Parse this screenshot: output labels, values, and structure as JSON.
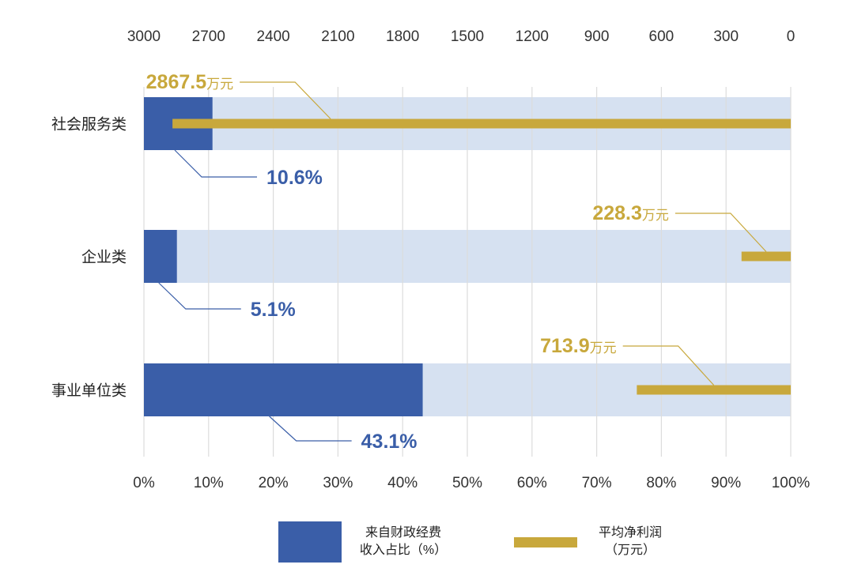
{
  "chart_data": {
    "type": "bar",
    "categories": [
      "社会服务类",
      "企业类",
      "事业单位类"
    ],
    "series": [
      {
        "name": "来自财政经费收入占比（%）",
        "legend_lines": [
          "来自财政经费",
          "收入占比（%）"
        ],
        "axis": "bottom",
        "values": [
          10.6,
          5.1,
          43.1
        ],
        "labels": [
          "10.6%",
          "5.1%",
          "43.1%"
        ],
        "color": "#3a5ea8"
      },
      {
        "name": "平均净利润（万元）",
        "legend_lines": [
          "平均净利润",
          "（万元）"
        ],
        "axis": "top",
        "values": [
          2867.5,
          228.3,
          713.9
        ],
        "labels": [
          "2867.5",
          "228.3",
          "713.9"
        ],
        "unit": "万元",
        "color": "#c8a83c"
      }
    ],
    "bottom_axis": {
      "range": [
        0,
        100
      ],
      "ticks": [
        0,
        10,
        20,
        30,
        40,
        50,
        60,
        70,
        80,
        90,
        100
      ],
      "tick_labels": [
        "0%",
        "10%",
        "20%",
        "30%",
        "40%",
        "50%",
        "60%",
        "70%",
        "80%",
        "90%",
        "100%"
      ]
    },
    "top_axis": {
      "range": [
        3000,
        0
      ],
      "reversed": true,
      "ticks": [
        3000,
        2700,
        2400,
        2100,
        1800,
        1500,
        1200,
        900,
        600,
        300,
        0
      ],
      "tick_labels": [
        "3000",
        "2700",
        "2400",
        "2100",
        "1800",
        "1500",
        "1200",
        "900",
        "600",
        "300",
        "0"
      ]
    },
    "grid": true,
    "background_band_color": "#d6e1f1",
    "gridline_color": "#dcdcdc",
    "legend_position": "bottom",
    "title": "",
    "xlabel": "",
    "ylabel": ""
  }
}
